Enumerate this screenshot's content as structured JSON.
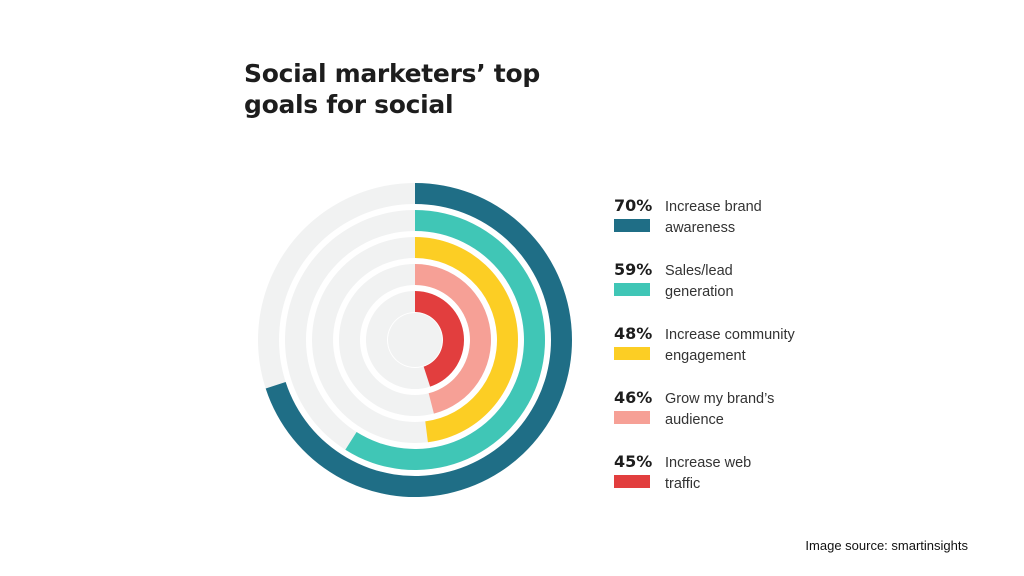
{
  "chart_data": {
    "type": "radial-bar",
    "title_lines": [
      "Social marketers’ top",
      "goals for social"
    ],
    "series": [
      {
        "name": "Increase brand awareness",
        "label_lines": [
          "Increase brand",
          "awareness"
        ],
        "value": 70,
        "value_label": "70%",
        "color": "#1f6e86"
      },
      {
        "name": "Sales/lead generation",
        "label_lines": [
          "Sales/lead",
          "generation"
        ],
        "value": 59,
        "value_label": "59%",
        "color": "#40c6b6"
      },
      {
        "name": "Increase community engagement",
        "label_lines": [
          "Increase community",
          "engagement"
        ],
        "value": 48,
        "value_label": "48%",
        "color": "#fcce24"
      },
      {
        "name": "Grow my brand’s audience",
        "label_lines": [
          "Grow my brand’s",
          "audience"
        ],
        "value": 46,
        "value_label": "46%",
        "color": "#f6a096"
      },
      {
        "name": "Increase web traffic",
        "label_lines": [
          "Increase web",
          "traffic"
        ],
        "value": 45,
        "value_label": "45%",
        "color": "#e23e3e"
      }
    ],
    "value_max": 100,
    "track_color": "#f1f2f2",
    "legend_position": "right"
  },
  "source_text": "Image source: smartinsights"
}
